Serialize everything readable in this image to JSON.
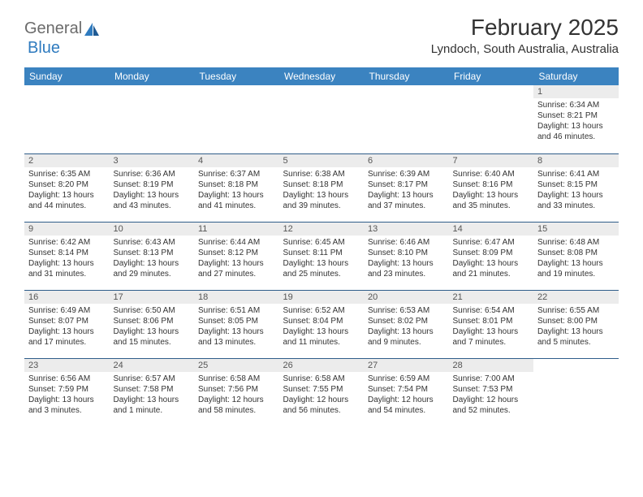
{
  "logo": {
    "general": "General",
    "blue": "Blue"
  },
  "title": "February 2025",
  "location": "Lyndoch, South Australia, Australia",
  "header_bg": "#3b83c0",
  "row_border": "#2f5d8a",
  "daynum_bg": "#ececec",
  "weekdays": [
    "Sunday",
    "Monday",
    "Tuesday",
    "Wednesday",
    "Thursday",
    "Friday",
    "Saturday"
  ],
  "weeks": [
    [
      {
        "empty": true
      },
      {
        "empty": true
      },
      {
        "empty": true
      },
      {
        "empty": true
      },
      {
        "empty": true
      },
      {
        "empty": true
      },
      {
        "day": "1",
        "sunrise": "Sunrise: 6:34 AM",
        "sunset": "Sunset: 8:21 PM",
        "daylight": "Daylight: 13 hours and 46 minutes."
      }
    ],
    [
      {
        "day": "2",
        "sunrise": "Sunrise: 6:35 AM",
        "sunset": "Sunset: 8:20 PM",
        "daylight": "Daylight: 13 hours and 44 minutes."
      },
      {
        "day": "3",
        "sunrise": "Sunrise: 6:36 AM",
        "sunset": "Sunset: 8:19 PM",
        "daylight": "Daylight: 13 hours and 43 minutes."
      },
      {
        "day": "4",
        "sunrise": "Sunrise: 6:37 AM",
        "sunset": "Sunset: 8:18 PM",
        "daylight": "Daylight: 13 hours and 41 minutes."
      },
      {
        "day": "5",
        "sunrise": "Sunrise: 6:38 AM",
        "sunset": "Sunset: 8:18 PM",
        "daylight": "Daylight: 13 hours and 39 minutes."
      },
      {
        "day": "6",
        "sunrise": "Sunrise: 6:39 AM",
        "sunset": "Sunset: 8:17 PM",
        "daylight": "Daylight: 13 hours and 37 minutes."
      },
      {
        "day": "7",
        "sunrise": "Sunrise: 6:40 AM",
        "sunset": "Sunset: 8:16 PM",
        "daylight": "Daylight: 13 hours and 35 minutes."
      },
      {
        "day": "8",
        "sunrise": "Sunrise: 6:41 AM",
        "sunset": "Sunset: 8:15 PM",
        "daylight": "Daylight: 13 hours and 33 minutes."
      }
    ],
    [
      {
        "day": "9",
        "sunrise": "Sunrise: 6:42 AM",
        "sunset": "Sunset: 8:14 PM",
        "daylight": "Daylight: 13 hours and 31 minutes."
      },
      {
        "day": "10",
        "sunrise": "Sunrise: 6:43 AM",
        "sunset": "Sunset: 8:13 PM",
        "daylight": "Daylight: 13 hours and 29 minutes."
      },
      {
        "day": "11",
        "sunrise": "Sunrise: 6:44 AM",
        "sunset": "Sunset: 8:12 PM",
        "daylight": "Daylight: 13 hours and 27 minutes."
      },
      {
        "day": "12",
        "sunrise": "Sunrise: 6:45 AM",
        "sunset": "Sunset: 8:11 PM",
        "daylight": "Daylight: 13 hours and 25 minutes."
      },
      {
        "day": "13",
        "sunrise": "Sunrise: 6:46 AM",
        "sunset": "Sunset: 8:10 PM",
        "daylight": "Daylight: 13 hours and 23 minutes."
      },
      {
        "day": "14",
        "sunrise": "Sunrise: 6:47 AM",
        "sunset": "Sunset: 8:09 PM",
        "daylight": "Daylight: 13 hours and 21 minutes."
      },
      {
        "day": "15",
        "sunrise": "Sunrise: 6:48 AM",
        "sunset": "Sunset: 8:08 PM",
        "daylight": "Daylight: 13 hours and 19 minutes."
      }
    ],
    [
      {
        "day": "16",
        "sunrise": "Sunrise: 6:49 AM",
        "sunset": "Sunset: 8:07 PM",
        "daylight": "Daylight: 13 hours and 17 minutes."
      },
      {
        "day": "17",
        "sunrise": "Sunrise: 6:50 AM",
        "sunset": "Sunset: 8:06 PM",
        "daylight": "Daylight: 13 hours and 15 minutes."
      },
      {
        "day": "18",
        "sunrise": "Sunrise: 6:51 AM",
        "sunset": "Sunset: 8:05 PM",
        "daylight": "Daylight: 13 hours and 13 minutes."
      },
      {
        "day": "19",
        "sunrise": "Sunrise: 6:52 AM",
        "sunset": "Sunset: 8:04 PM",
        "daylight": "Daylight: 13 hours and 11 minutes."
      },
      {
        "day": "20",
        "sunrise": "Sunrise: 6:53 AM",
        "sunset": "Sunset: 8:02 PM",
        "daylight": "Daylight: 13 hours and 9 minutes."
      },
      {
        "day": "21",
        "sunrise": "Sunrise: 6:54 AM",
        "sunset": "Sunset: 8:01 PM",
        "daylight": "Daylight: 13 hours and 7 minutes."
      },
      {
        "day": "22",
        "sunrise": "Sunrise: 6:55 AM",
        "sunset": "Sunset: 8:00 PM",
        "daylight": "Daylight: 13 hours and 5 minutes."
      }
    ],
    [
      {
        "day": "23",
        "sunrise": "Sunrise: 6:56 AM",
        "sunset": "Sunset: 7:59 PM",
        "daylight": "Daylight: 13 hours and 3 minutes."
      },
      {
        "day": "24",
        "sunrise": "Sunrise: 6:57 AM",
        "sunset": "Sunset: 7:58 PM",
        "daylight": "Daylight: 13 hours and 1 minute."
      },
      {
        "day": "25",
        "sunrise": "Sunrise: 6:58 AM",
        "sunset": "Sunset: 7:56 PM",
        "daylight": "Daylight: 12 hours and 58 minutes."
      },
      {
        "day": "26",
        "sunrise": "Sunrise: 6:58 AM",
        "sunset": "Sunset: 7:55 PM",
        "daylight": "Daylight: 12 hours and 56 minutes."
      },
      {
        "day": "27",
        "sunrise": "Sunrise: 6:59 AM",
        "sunset": "Sunset: 7:54 PM",
        "daylight": "Daylight: 12 hours and 54 minutes."
      },
      {
        "day": "28",
        "sunrise": "Sunrise: 7:00 AM",
        "sunset": "Sunset: 7:53 PM",
        "daylight": "Daylight: 12 hours and 52 minutes."
      },
      {
        "empty": true
      }
    ]
  ]
}
